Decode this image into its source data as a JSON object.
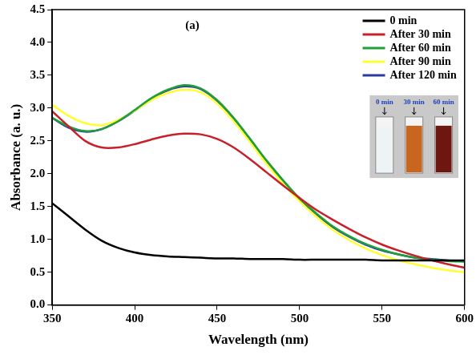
{
  "chart_data": {
    "type": "line",
    "x_label": "Wavelength (nm)",
    "y_label": "Absorbance (a. u.)",
    "xlim": [
      350,
      600
    ],
    "xticks": [
      350,
      400,
      450,
      500,
      550,
      600
    ],
    "ylim": [
      0,
      4.5
    ],
    "yticks": [
      {
        "value": 0,
        "label": "0.0"
      },
      0.5,
      {
        "value": 1,
        "label": "1.0"
      },
      1.5,
      {
        "value": 2,
        "label": "2.0"
      },
      2.5,
      {
        "value": 3,
        "label": "3.0"
      },
      3.5,
      {
        "value": 4,
        "label": "4.0"
      },
      4.5
    ],
    "grid": false,
    "legend": "upper right",
    "annotations": [
      {
        "text": "(a)",
        "x": 435,
        "y": 4.25
      }
    ],
    "inset_labels": [
      "0 min",
      "30 min",
      "60 min"
    ],
    "x": [
      350,
      360,
      370,
      380,
      390,
      400,
      410,
      420,
      430,
      440,
      450,
      460,
      470,
      480,
      490,
      500,
      510,
      520,
      530,
      540,
      550,
      560,
      570,
      580,
      590,
      600
    ],
    "series": [
      {
        "name": "0 min",
        "color": "#000000",
        "values": [
          1.55,
          1.35,
          1.15,
          0.98,
          0.87,
          0.8,
          0.76,
          0.74,
          0.73,
          0.72,
          0.71,
          0.71,
          0.7,
          0.7,
          0.7,
          0.69,
          0.69,
          0.69,
          0.69,
          0.69,
          0.68,
          0.68,
          0.68,
          0.68,
          0.68,
          0.68
        ]
      },
      {
        "name": "After 30 min",
        "color": "#c8202a",
        "values": [
          2.95,
          2.72,
          2.5,
          2.4,
          2.4,
          2.45,
          2.52,
          2.58,
          2.61,
          2.6,
          2.53,
          2.4,
          2.22,
          2.02,
          1.82,
          1.63,
          1.45,
          1.3,
          1.16,
          1.03,
          0.92,
          0.83,
          0.75,
          0.68,
          0.62,
          0.57
        ]
      },
      {
        "name": "After 60 min",
        "color": "#1fa038",
        "values": [
          2.85,
          2.72,
          2.65,
          2.68,
          2.8,
          2.97,
          3.15,
          3.28,
          3.35,
          3.3,
          3.12,
          2.85,
          2.53,
          2.2,
          1.9,
          1.62,
          1.4,
          1.2,
          1.05,
          0.93,
          0.84,
          0.77,
          0.72,
          0.69,
          0.67,
          0.66
        ]
      },
      {
        "name": "After 90 min",
        "color": "#ffff30",
        "values": [
          3.05,
          2.88,
          2.77,
          2.74,
          2.82,
          2.96,
          3.12,
          3.23,
          3.28,
          3.24,
          3.07,
          2.8,
          2.48,
          2.15,
          1.85,
          1.58,
          1.35,
          1.15,
          0.99,
          0.86,
          0.76,
          0.68,
          0.62,
          0.57,
          0.53,
          0.5
        ]
      },
      {
        "name": "After 120 min",
        "color": "#2b3a9c",
        "values": [
          2.85,
          2.7,
          2.64,
          2.68,
          2.8,
          2.96,
          3.14,
          3.27,
          3.33,
          3.29,
          3.11,
          2.84,
          2.52,
          2.19,
          1.89,
          1.61,
          1.38,
          1.19,
          1.04,
          0.92,
          0.83,
          0.77,
          0.72,
          0.7,
          0.68,
          0.67
        ]
      }
    ]
  }
}
